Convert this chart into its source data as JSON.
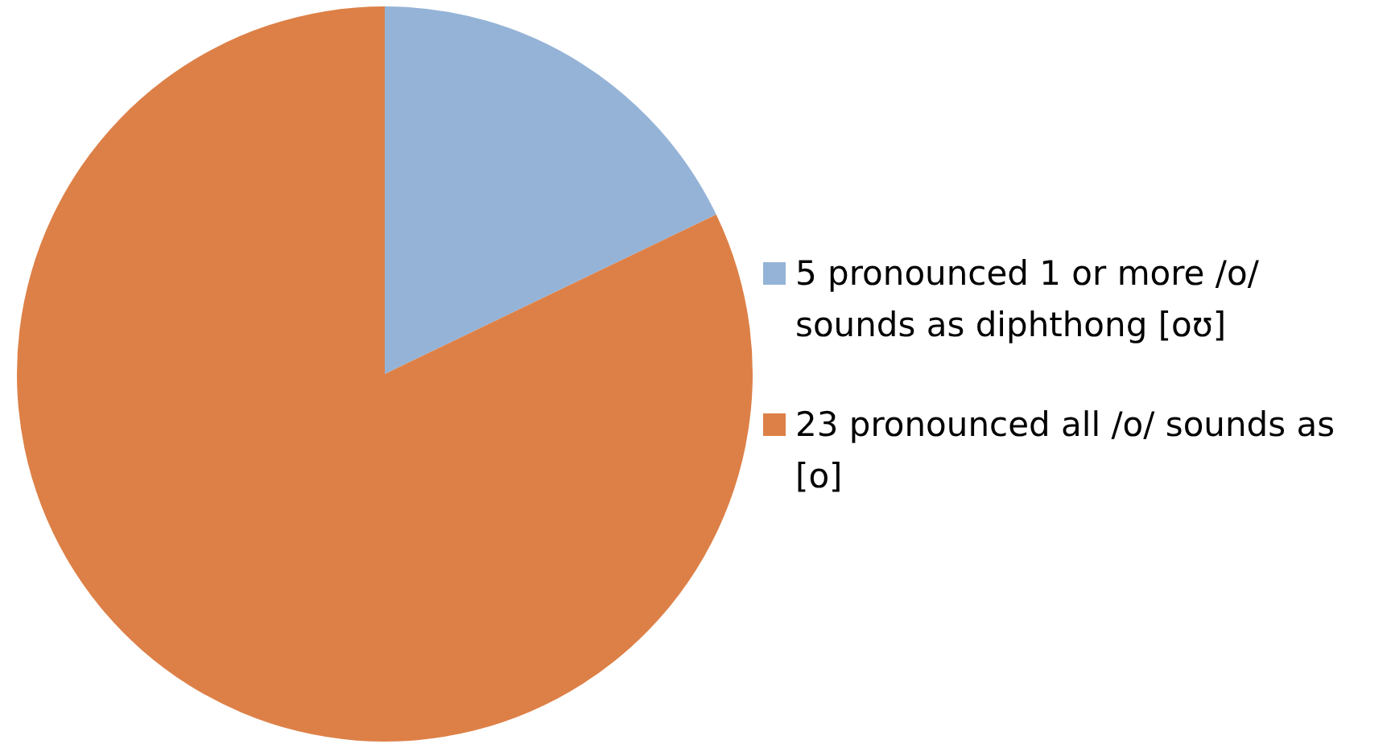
{
  "chart_data": {
    "type": "pie",
    "categories": [
      "5 pronounced 1 or more /o/ sounds as diphthong [oʊ]",
      "23 pronounced all /o/ sounds as [o]"
    ],
    "values": [
      5,
      23
    ],
    "colors": [
      "#95b3d7",
      "#dd8047"
    ],
    "legend": "right"
  }
}
